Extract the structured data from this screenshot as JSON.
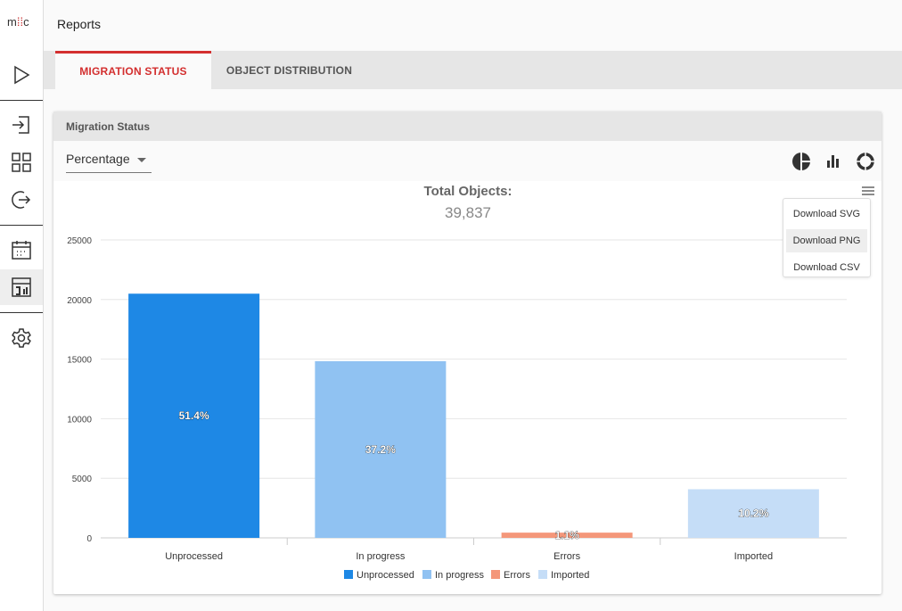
{
  "logo": {
    "m": "m",
    "dots": "⁞⁞",
    "c": "c"
  },
  "header": {
    "title": "Reports"
  },
  "sidebar": {
    "items": [
      {
        "icon": "play-icon"
      },
      {
        "icon": "login-icon"
      },
      {
        "icon": "grid-icon"
      },
      {
        "icon": "logout-icon"
      },
      {
        "icon": "calendar-icon"
      },
      {
        "icon": "report-icon",
        "active": true
      },
      {
        "icon": "gear-icon"
      }
    ]
  },
  "tabs": [
    {
      "label": "MIGRATION STATUS",
      "active": true
    },
    {
      "label": "OBJECT DISTRIBUTION"
    }
  ],
  "card": {
    "title": "Migration Status",
    "select_value": "Percentage",
    "chart_type_icons": [
      "pie-chart-icon",
      "bar-chart-icon",
      "donut-chart-icon"
    ]
  },
  "export_menu": {
    "items": [
      "Download SVG",
      "Download PNG",
      "Download CSV"
    ],
    "highlighted": "Download PNG"
  },
  "chart_data": {
    "type": "bar",
    "title": "Total Objects:",
    "subtitle": "39,837",
    "categories": [
      "Unprocessed",
      "In progress",
      "Errors",
      "Imported"
    ],
    "values": [
      20490,
      14827,
      438,
      4082
    ],
    "data_labels": [
      "51.4%",
      "37.2%",
      "1.1%",
      "10.2%"
    ],
    "colors": [
      "#1e88e5",
      "#90c2f2",
      "#f4977a",
      "#c5ddf7"
    ],
    "yticks": [
      "0",
      "5000",
      "10000",
      "15000",
      "20000",
      "25000"
    ],
    "ylim": [
      0,
      25000
    ],
    "grid": true,
    "legend": {
      "position": "bottom",
      "items": [
        "Unprocessed",
        "In progress",
        "Errors",
        "Imported"
      ]
    }
  }
}
